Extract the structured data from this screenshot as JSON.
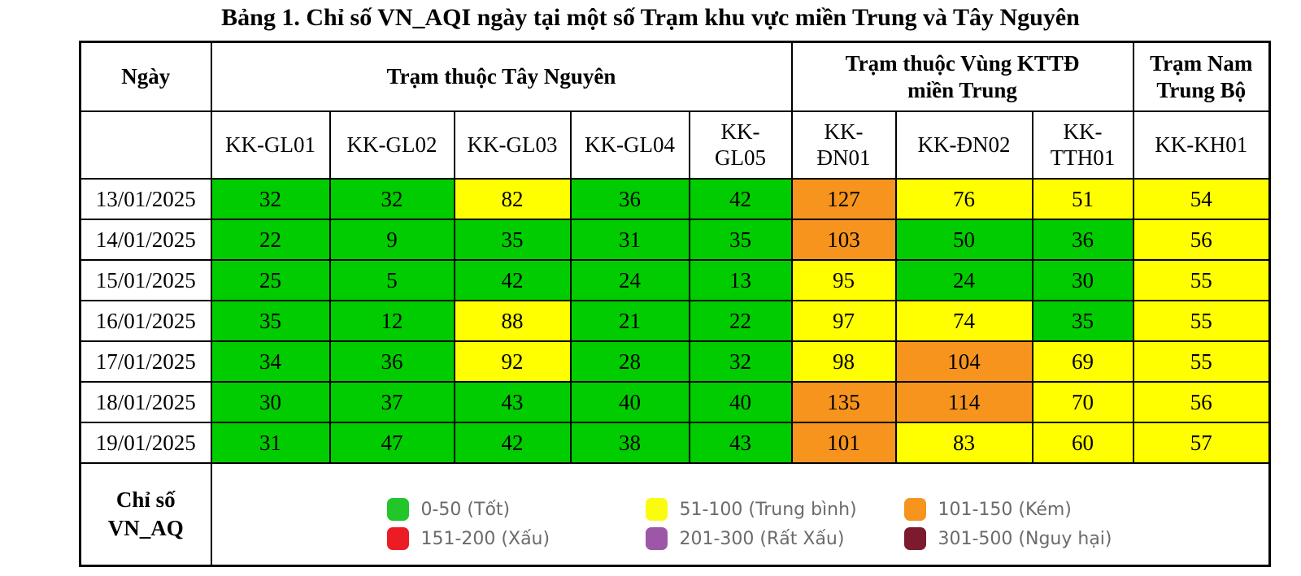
{
  "title": "Bảng 1. Chỉ số VN_AQI ngày tại một số Trạm khu vực miền Trung và Tây Nguyên",
  "table": {
    "date_header": "Ngày",
    "groups": [
      {
        "label": "Trạm thuộc Tây Nguyên",
        "colspan": 5
      },
      {
        "label": "Trạm thuộc Vùng KTTĐ\nmiền Trung",
        "colspan": 3
      },
      {
        "label": "Trạm Nam\nTrung Bộ",
        "colspan": 1
      }
    ],
    "stations": [
      "KK-GL01",
      "KK-GL02",
      "KK-GL03",
      "KK-GL04",
      "KK-\nGL05",
      "KK-\nĐN01",
      "KK-ĐN02",
      "KK-\nTTH01",
      "KK-KH01"
    ],
    "rows": [
      {
        "date": "13/01/2025",
        "values": [
          32,
          32,
          82,
          36,
          42,
          127,
          76,
          51,
          54
        ]
      },
      {
        "date": "14/01/2025",
        "values": [
          22,
          9,
          35,
          31,
          35,
          103,
          50,
          36,
          56
        ]
      },
      {
        "date": "15/01/2025",
        "values": [
          25,
          5,
          42,
          24,
          13,
          95,
          24,
          30,
          55
        ]
      },
      {
        "date": "16/01/2025",
        "values": [
          35,
          12,
          88,
          21,
          22,
          97,
          74,
          35,
          55
        ]
      },
      {
        "date": "17/01/2025",
        "values": [
          34,
          36,
          92,
          28,
          32,
          98,
          104,
          69,
          55
        ]
      },
      {
        "date": "18/01/2025",
        "values": [
          30,
          37,
          43,
          40,
          40,
          135,
          114,
          70,
          56
        ]
      },
      {
        "date": "19/01/2025",
        "values": [
          31,
          47,
          42,
          38,
          43,
          101,
          83,
          60,
          57
        ]
      }
    ]
  },
  "aqi_cell_colors": {
    "good": "#00CC00",
    "moderate": "#FFFF00",
    "poor": "#F7941D"
  },
  "legend": {
    "label": "Chỉ số\nVN_AQ",
    "items": [
      {
        "key": "good",
        "min": 0,
        "max": 50,
        "label": "0-50 (Tốt)",
        "color": "#22C52A"
      },
      {
        "key": "moderate",
        "min": 51,
        "max": 100,
        "label": "51-100 (Trung bình)",
        "color": "#FBFB0E"
      },
      {
        "key": "poor",
        "min": 101,
        "max": 150,
        "label": "101-150 (Kém)",
        "color": "#F7941E"
      },
      {
        "key": "bad",
        "min": 151,
        "max": 200,
        "label": "151-200 (Xấu)",
        "color": "#EC1C24"
      },
      {
        "key": "very-bad",
        "min": 201,
        "max": 300,
        "label": "201-300 (Rất Xấu)",
        "color": "#9C57A6"
      },
      {
        "key": "hazardous",
        "min": 301,
        "max": 500,
        "label": "301-500 (Nguy hại)",
        "color": "#7D1B2E"
      }
    ]
  }
}
